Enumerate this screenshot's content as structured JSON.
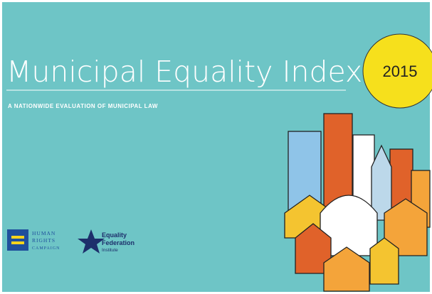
{
  "cover": {
    "title": "Municipal Equality Index",
    "subtitle": "A NATIONWIDE EVALUATION OF MUNICIPAL LAW",
    "year": "2015",
    "logos": {
      "hrc": [
        "HUMAN",
        "RIGHTS",
        "CAMPAIGN"
      ],
      "equality_federation": [
        "Equality",
        "Federation",
        "Institute"
      ]
    }
  }
}
